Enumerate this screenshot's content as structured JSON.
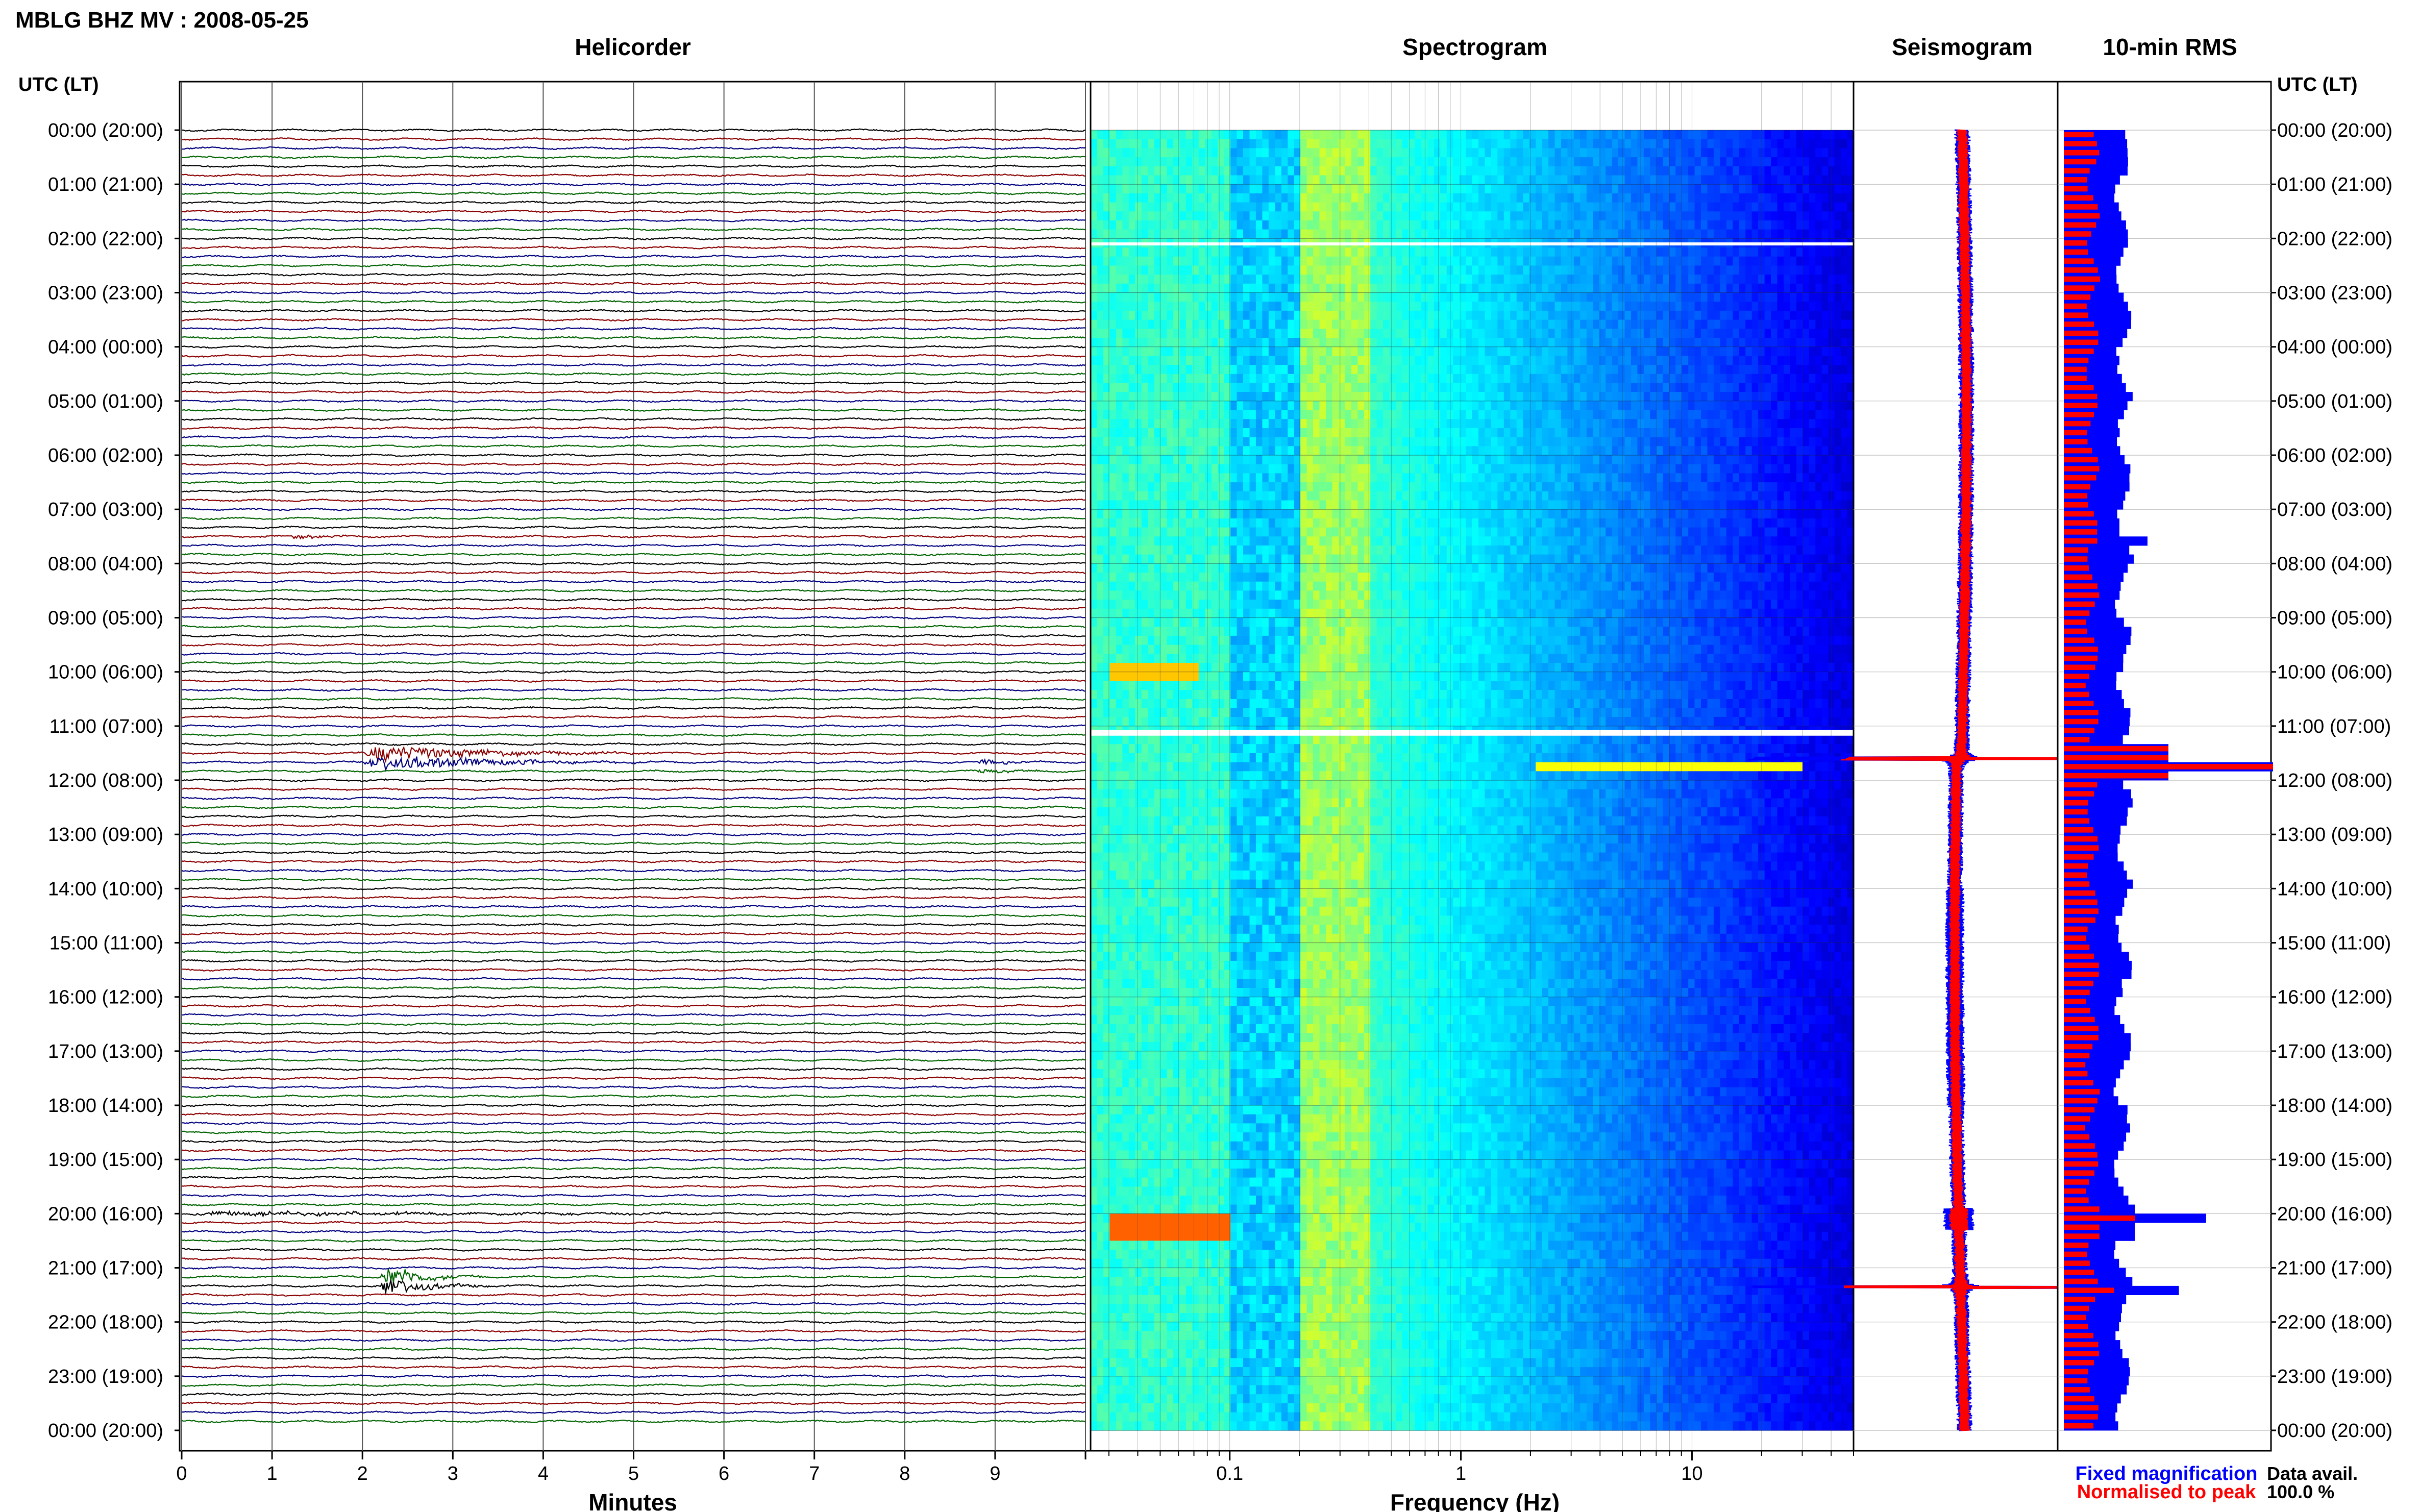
{
  "figure": {
    "title": "MBLG BHZ MV : 2008-05-25",
    "time_axis_label": "UTC (LT)",
    "data_avail_label": "Data avail.",
    "data_avail_value": "100.0 %",
    "legend": {
      "fixed": "Fixed magnification",
      "normalised": "Normalised to peak"
    },
    "colors": {
      "trace_cycle": [
        "#000000",
        "#8b0000",
        "#00007f",
        "#006400"
      ],
      "fixed": "#0000ff",
      "normalised": "#ff0000"
    }
  },
  "chart_data": [
    {
      "type": "line",
      "panel": "helicorder",
      "title": "Helicorder",
      "xlabel": "Minutes",
      "x_ticks": [
        "0",
        "1",
        "2",
        "3",
        "4",
        "5",
        "6",
        "7",
        "8",
        "9"
      ],
      "xlim": [
        0,
        10
      ],
      "rows_per_day": 144,
      "row_minutes": 10,
      "y_ticks": [
        "00:00 (20:00)",
        "01:00 (21:00)",
        "02:00 (22:00)",
        "03:00 (23:00)",
        "04:00 (00:00)",
        "05:00 (01:00)",
        "06:00 (02:00)",
        "07:00 (03:00)",
        "08:00 (04:00)",
        "09:00 (05:00)",
        "10:00 (06:00)",
        "11:00 (07:00)",
        "12:00 (08:00)",
        "13:00 (09:00)",
        "14:00 (10:00)",
        "15:00 (11:00)",
        "16:00 (12:00)",
        "17:00 (13:00)",
        "18:00 (14:00)",
        "19:00 (15:00)",
        "20:00 (16:00)",
        "21:00 (17:00)",
        "22:00 (18:00)",
        "23:00 (19:00)",
        "00:00 (20:00)"
      ],
      "events": [
        {
          "hour": 7.5,
          "minute": 1.2,
          "dur": 0.8,
          "amp": 2.2
        },
        {
          "hour": 11.6,
          "minute": 2.0,
          "dur": 3.5,
          "amp": 6.0
        },
        {
          "hour": 11.8,
          "minute": 8.8,
          "dur": 1.1,
          "amp": 1.8
        },
        {
          "hour": 20.0,
          "minute": 0.0,
          "dur": 10.0,
          "amp": 1.6
        },
        {
          "hour": 21.25,
          "minute": 2.2,
          "dur": 1.2,
          "amp": 8.0
        }
      ]
    },
    {
      "type": "heatmap",
      "panel": "spectrogram",
      "title": "Spectrogram",
      "xlabel": "Frequency (Hz)",
      "x_scale": "log",
      "xlim": [
        0.025,
        50
      ],
      "x_ticks": [
        "0.1",
        "1",
        "10"
      ],
      "ylim_hours": [
        0,
        24
      ],
      "gaps_hours": [
        2.1,
        11.1,
        11.15
      ]
    },
    {
      "type": "line",
      "panel": "seismogram",
      "title": "Seismogram",
      "spikes_hours": [
        11.6,
        21.35
      ],
      "series": [
        {
          "name": "Fixed magnification",
          "color": "#0000ff"
        },
        {
          "name": "Normalised to peak",
          "color": "#ff0000"
        }
      ]
    },
    {
      "type": "bar",
      "panel": "rms",
      "title": "10-min RMS",
      "bins_per_day": 144,
      "y_ticks_right": [
        "00:00 (20:00)",
        "01:00 (21:00)",
        "02:00 (22:00)",
        "03:00 (23:00)",
        "04:00 (00:00)",
        "05:00 (01:00)",
        "06:00 (02:00)",
        "07:00 (03:00)",
        "08:00 (04:00)",
        "09:00 (05:00)",
        "10:00 (06:00)",
        "11:00 (07:00)",
        "12:00 (08:00)",
        "13:00 (09:00)",
        "14:00 (10:00)",
        "15:00 (11:00)",
        "16:00 (12:00)",
        "17:00 (13:00)",
        "18:00 (14:00)",
        "19:00 (15:00)",
        "20:00 (16:00)",
        "21:00 (17:00)",
        "22:00 (18:00)",
        "23:00 (19:00)",
        "00:00 (20:00)"
      ],
      "series": [
        {
          "name": "Fixed magnification",
          "color": "#0000ff"
        },
        {
          "name": "Normalised to peak",
          "color": "#ff0000"
        }
      ],
      "peaks": [
        {
          "hour": 7.55,
          "fixed": 0.4,
          "normalised": 0.16
        },
        {
          "hour": 11.6,
          "fixed": 1.0,
          "normalised": 1.0
        },
        {
          "hour": 20.05,
          "fixed": 0.68,
          "normalised": 0.34
        },
        {
          "hour": 21.35,
          "fixed": 0.55,
          "normalised": 0.24
        }
      ]
    }
  ]
}
